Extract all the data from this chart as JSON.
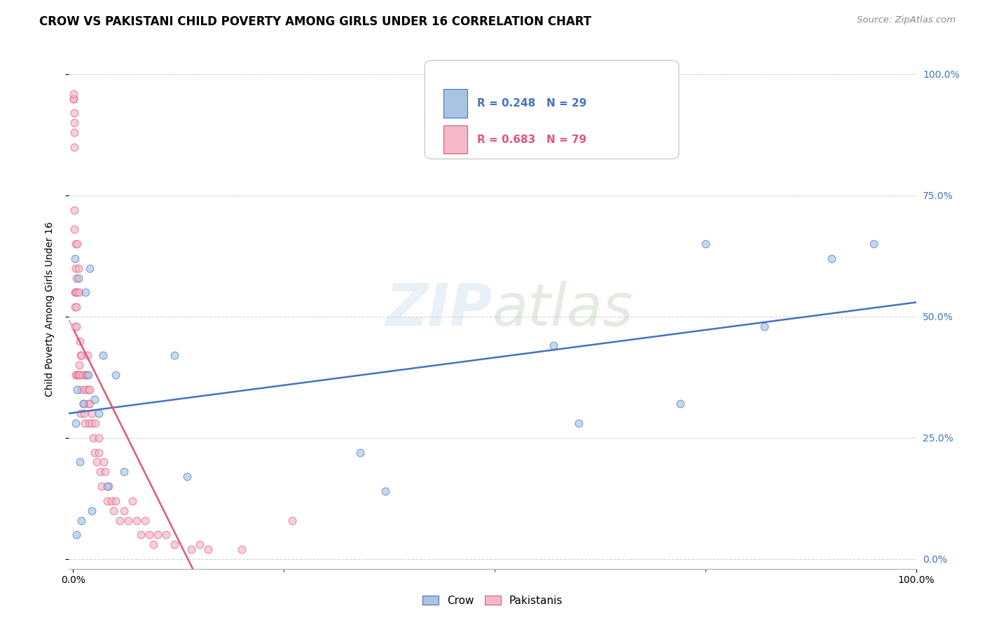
{
  "title": "CROW VS PAKISTANI CHILD POVERTY AMONG GIRLS UNDER 16 CORRELATION CHART",
  "source": "Source: ZipAtlas.com",
  "ylabel": "Child Poverty Among Girls Under 16",
  "watermark": "ZIPatlas",
  "background_color": "#ffffff",
  "grid_color": "#d0d0d0",
  "crow_color": "#a8c4e0",
  "pakistani_color": "#f4b8c8",
  "crow_line_color": "#4472c4",
  "pakistani_line_color": "#e05878",
  "crow_R": 0.248,
  "crow_N": 29,
  "pakistani_R": 0.683,
  "pakistani_N": 79,
  "crow_scatter_x": [
    0.002,
    0.003,
    0.004,
    0.005,
    0.006,
    0.008,
    0.01,
    0.012,
    0.015,
    0.018,
    0.02,
    0.022,
    0.025,
    0.03,
    0.035,
    0.04,
    0.05,
    0.06,
    0.12,
    0.135,
    0.34,
    0.37,
    0.57,
    0.6,
    0.72,
    0.75,
    0.82,
    0.9,
    0.95
  ],
  "crow_scatter_y": [
    0.62,
    0.28,
    0.05,
    0.35,
    0.58,
    0.2,
    0.08,
    0.32,
    0.55,
    0.38,
    0.6,
    0.1,
    0.33,
    0.3,
    0.42,
    0.15,
    0.38,
    0.18,
    0.42,
    0.17,
    0.22,
    0.14,
    0.44,
    0.28,
    0.32,
    0.65,
    0.48,
    0.62,
    0.65
  ],
  "pakistani_scatter_x": [
    0.0005,
    0.0005,
    0.0005,
    0.001,
    0.001,
    0.001,
    0.001,
    0.0015,
    0.0015,
    0.002,
    0.002,
    0.002,
    0.003,
    0.003,
    0.003,
    0.003,
    0.004,
    0.004,
    0.004,
    0.005,
    0.005,
    0.005,
    0.006,
    0.006,
    0.007,
    0.007,
    0.008,
    0.008,
    0.009,
    0.009,
    0.01,
    0.01,
    0.011,
    0.012,
    0.013,
    0.014,
    0.015,
    0.015,
    0.016,
    0.017,
    0.018,
    0.018,
    0.019,
    0.02,
    0.02,
    0.022,
    0.022,
    0.024,
    0.025,
    0.026,
    0.028,
    0.03,
    0.03,
    0.032,
    0.034,
    0.036,
    0.038,
    0.04,
    0.042,
    0.045,
    0.048,
    0.05,
    0.055,
    0.06,
    0.065,
    0.07,
    0.075,
    0.08,
    0.085,
    0.09,
    0.095,
    0.1,
    0.11,
    0.12,
    0.14,
    0.15,
    0.16,
    0.2,
    0.26
  ],
  "pakistani_scatter_y": [
    0.95,
    0.95,
    0.96,
    0.92,
    0.9,
    0.88,
    0.85,
    0.72,
    0.68,
    0.55,
    0.52,
    0.48,
    0.65,
    0.55,
    0.38,
    0.6,
    0.58,
    0.52,
    0.48,
    0.65,
    0.55,
    0.38,
    0.6,
    0.38,
    0.55,
    0.4,
    0.45,
    0.38,
    0.42,
    0.3,
    0.42,
    0.35,
    0.38,
    0.32,
    0.3,
    0.28,
    0.35,
    0.38,
    0.38,
    0.42,
    0.32,
    0.35,
    0.28,
    0.35,
    0.32,
    0.3,
    0.28,
    0.25,
    0.22,
    0.28,
    0.2,
    0.22,
    0.25,
    0.18,
    0.15,
    0.2,
    0.18,
    0.12,
    0.15,
    0.12,
    0.1,
    0.12,
    0.08,
    0.1,
    0.08,
    0.12,
    0.08,
    0.05,
    0.08,
    0.05,
    0.03,
    0.05,
    0.05,
    0.03,
    0.02,
    0.03,
    0.02,
    0.02,
    0.08
  ],
  "xlim": [
    -0.005,
    1.0
  ],
  "ylim": [
    -0.02,
    1.05
  ],
  "marker_size": 60,
  "marker_alpha": 0.65,
  "marker_edge_width": 0.8
}
